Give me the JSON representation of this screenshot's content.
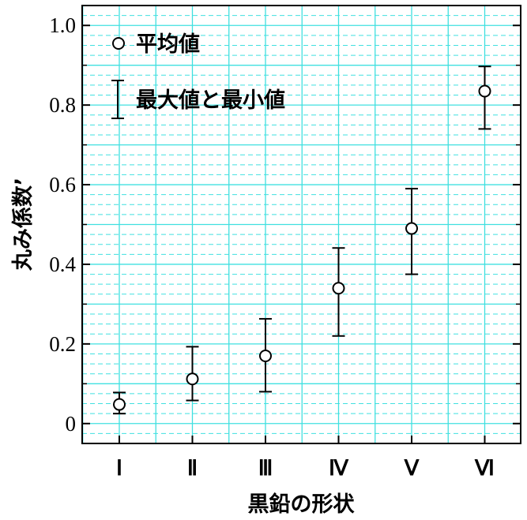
{
  "chart_data": {
    "type": "scatter",
    "xlabel": "黒鉛の形状",
    "ylabel": "丸み係数’",
    "categories": [
      "Ⅰ",
      "Ⅱ",
      "Ⅲ",
      "Ⅳ",
      "Ⅴ",
      "Ⅵ"
    ],
    "series": [
      {
        "name": "平均値",
        "values": [
          0.048,
          0.112,
          0.17,
          0.34,
          0.49,
          0.835
        ],
        "min": [
          0.025,
          0.058,
          0.08,
          0.22,
          0.375,
          0.74
        ],
        "max": [
          0.078,
          0.193,
          0.263,
          0.441,
          0.59,
          0.897
        ]
      }
    ],
    "error_bar_label": "最大値と最小値",
    "ylim": [
      -0.05,
      1.05
    ],
    "yticks": [
      0,
      0.2,
      0.4,
      0.6,
      0.8,
      1.0
    ],
    "ytick_labels": [
      "0",
      "0.2",
      "0.4",
      "0.6",
      "0.8",
      "1.0"
    ],
    "grid": true,
    "grid_major_color": "#40e0e0",
    "grid_minor_color": "#40e0e0",
    "legend_position": "top-left"
  }
}
